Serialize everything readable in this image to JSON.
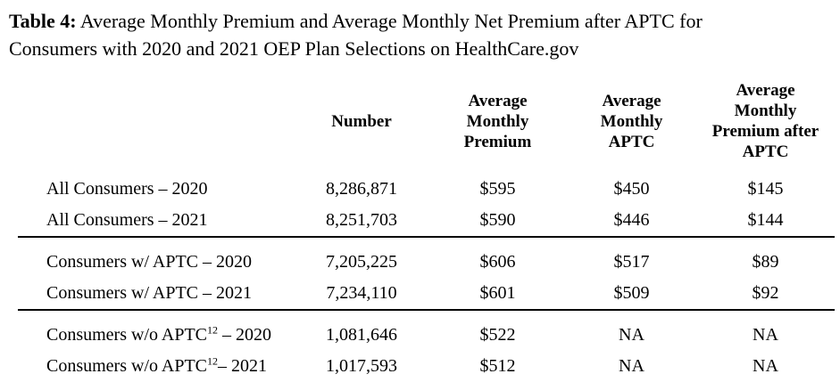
{
  "title": {
    "label": "Table 4:",
    "text": " Average Monthly Premium and Average Monthly Net Premium after APTC for\nConsumers with 2020 and 2021 OEP Plan Selections on HealthCare.gov"
  },
  "table": {
    "headers": {
      "row_label": "",
      "number": "Number",
      "avg_monthly_premium": "Average\nMonthly\nPremium",
      "avg_monthly_aptc": "Average\nMonthly\nAPTC",
      "avg_monthly_premium_after_aptc": "Average\nMonthly\nPremium after\nAPTC"
    },
    "groups": [
      {
        "name": "all-consumers",
        "rows": [
          {
            "label": "All Consumers – 2020",
            "label_sup": "",
            "label_suffix": "",
            "number": "8,286,871",
            "avg_monthly_premium": "$595",
            "avg_monthly_aptc": "$450",
            "avg_monthly_premium_after_aptc": "$145"
          },
          {
            "label": "All Consumers – 2021",
            "label_sup": "",
            "label_suffix": "",
            "number": "8,251,703",
            "avg_monthly_premium": "$590",
            "avg_monthly_aptc": "$446",
            "avg_monthly_premium_after_aptc": "$144"
          }
        ]
      },
      {
        "name": "consumers-with-aptc",
        "rows": [
          {
            "label": "Consumers w/ APTC – 2020",
            "label_sup": "",
            "label_suffix": "",
            "number": "7,205,225",
            "avg_monthly_premium": "$606",
            "avg_monthly_aptc": "$517",
            "avg_monthly_premium_after_aptc": "$89"
          },
          {
            "label": "Consumers w/ APTC – 2021",
            "label_sup": "",
            "label_suffix": "",
            "number": "7,234,110",
            "avg_monthly_premium": "$601",
            "avg_monthly_aptc": "$509",
            "avg_monthly_premium_after_aptc": "$92"
          }
        ]
      },
      {
        "name": "consumers-without-aptc",
        "rows": [
          {
            "label": "Consumers w/o APTC",
            "label_sup": "12",
            "label_suffix": " – 2020",
            "number": "1,081,646",
            "avg_monthly_premium": "$522",
            "avg_monthly_aptc": "NA",
            "avg_monthly_premium_after_aptc": "NA"
          },
          {
            "label": "Consumers w/o APTC",
            "label_sup": "12",
            "label_suffix": "– 2021",
            "number": "1,017,593",
            "avg_monthly_premium": "$512",
            "avg_monthly_aptc": "NA",
            "avg_monthly_premium_after_aptc": "NA"
          }
        ]
      }
    ]
  }
}
